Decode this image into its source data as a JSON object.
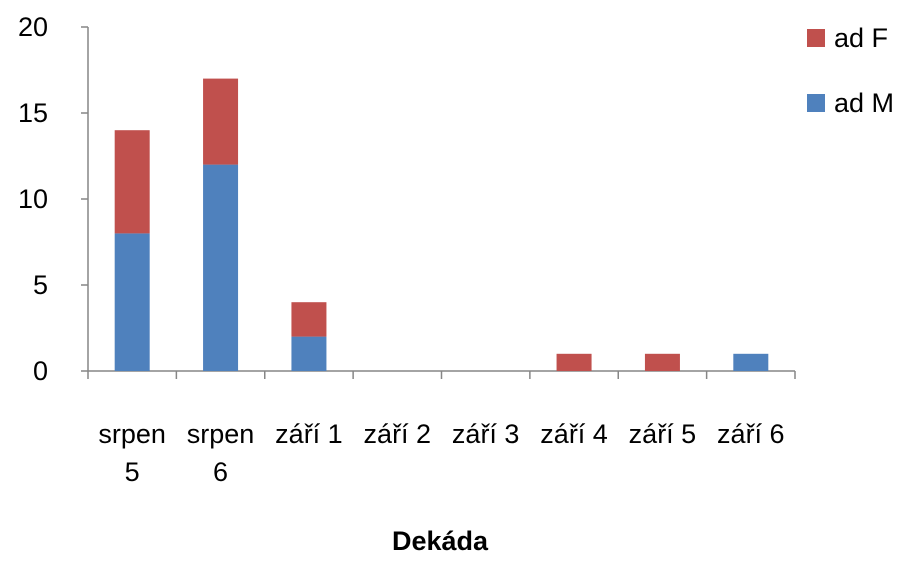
{
  "chart_data": {
    "type": "bar",
    "stacked": true,
    "categories": [
      [
        "srpen",
        "5"
      ],
      [
        "srpen",
        "6"
      ],
      [
        "září 1"
      ],
      [
        "září 2"
      ],
      [
        "září 3"
      ],
      [
        "září 4"
      ],
      [
        "září 5"
      ],
      [
        "září 6"
      ]
    ],
    "series": [
      {
        "name": "ad M",
        "color": "#4F81BD",
        "values": [
          8,
          12,
          2,
          0,
          0,
          0,
          0,
          1
        ]
      },
      {
        "name": "ad F",
        "color": "#C0504D",
        "values": [
          6,
          5,
          2,
          0,
          0,
          1,
          1,
          0
        ]
      }
    ],
    "legend_order": [
      "ad F",
      "ad M"
    ],
    "legend_position": "right",
    "xlabel": "Dekáda",
    "ylabel": "",
    "ylim": [
      0,
      20
    ],
    "yticks": [
      0,
      5,
      10,
      15,
      20
    ],
    "grid": false
  }
}
